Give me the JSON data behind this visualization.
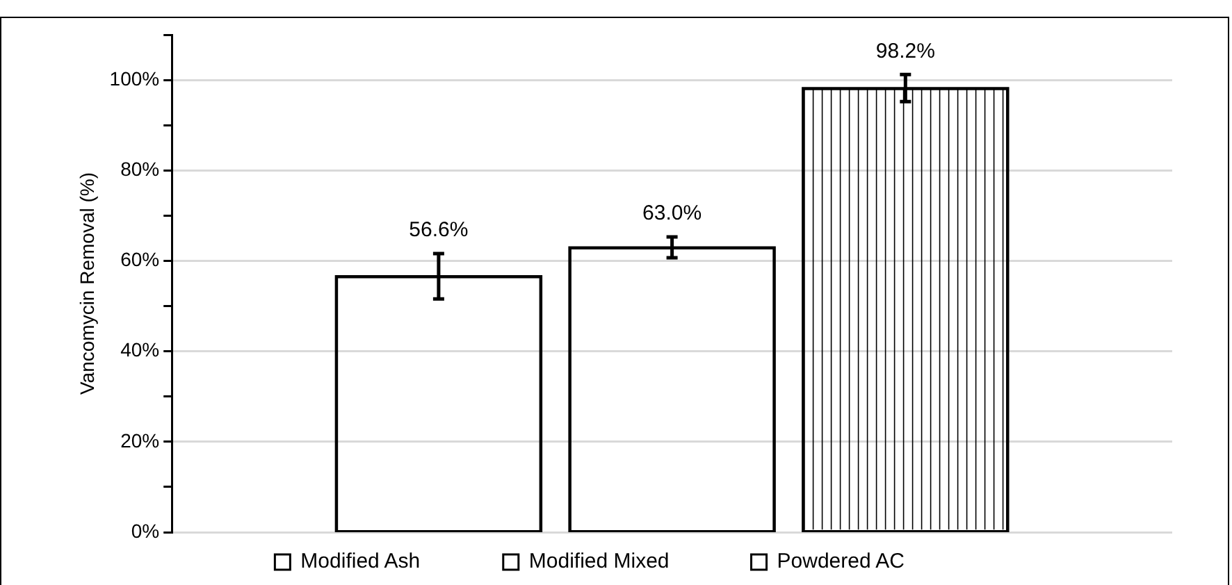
{
  "chart_data": {
    "type": "bar",
    "ylabel": "Vancomycin Removal (%)",
    "categories": [
      null
    ],
    "series": [
      {
        "name": "Modified Ash",
        "color": "#000000",
        "values": [
          56.6
        ],
        "errors": [
          5.0
        ],
        "value_labels": [
          "56.6%"
        ]
      },
      {
        "name": "Modified Mixed",
        "color": "#000000",
        "values": [
          63.0
        ],
        "errors": [
          2.3
        ],
        "value_labels": [
          "63.0%"
        ]
      },
      {
        "name": "Powdered AC",
        "color": "#000000",
        "values": [
          98.2
        ],
        "errors": [
          3.0
        ],
        "value_labels": [
          "98.2%"
        ]
      }
    ],
    "ylim": [
      0,
      110
    ],
    "yticks": [
      {
        "value": 0,
        "label": "0%"
      },
      {
        "value": 10,
        "label": null
      },
      {
        "value": 20,
        "label": "20%"
      },
      {
        "value": 30,
        "label": null
      },
      {
        "value": 40,
        "label": "40%"
      },
      {
        "value": 50,
        "label": null
      },
      {
        "value": 60,
        "label": "60%"
      },
      {
        "value": 70,
        "label": null
      },
      {
        "value": 80,
        "label": "80%"
      },
      {
        "value": 90,
        "label": null
      },
      {
        "value": 100,
        "label": "100%"
      },
      {
        "value": 110,
        "label": null
      }
    ],
    "grid": "y",
    "legend": "bottom",
    "tick_labels": "y"
  }
}
